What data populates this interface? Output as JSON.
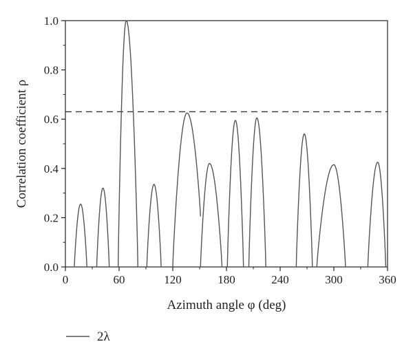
{
  "chart_data": {
    "type": "line",
    "title": "",
    "xlabel": "Azimuth angle φ (deg)",
    "ylabel": "Correlation coefficient ρ",
    "xlim": [
      0,
      360
    ],
    "ylim": [
      0,
      1.0
    ],
    "x_ticks": [
      0,
      60,
      120,
      180,
      240,
      300,
      360
    ],
    "x_tick_labels": [
      "0",
      "60",
      "120",
      "180",
      "240",
      "300",
      "360"
    ],
    "y_ticks": [
      0,
      0.2,
      0.4,
      0.6,
      0.8,
      1.0
    ],
    "y_tick_labels": [
      "0.0",
      "0.2",
      "0.4",
      "0.6",
      "0.8",
      "1.0"
    ],
    "grid": false,
    "legend_position": "bottom-left",
    "threshold": {
      "y": 0.63,
      "style": "dashed"
    },
    "series": [
      {
        "name": "2λ",
        "color": "#555555",
        "lobes": [
          {
            "start": 10,
            "peak_x": 17,
            "peak_y": 0.255,
            "end": 24
          },
          {
            "start": 35,
            "peak_x": 42,
            "peak_y": 0.32,
            "end": 49
          },
          {
            "start": 59,
            "peak_x": 68,
            "peak_y": 1.0,
            "end": 81
          },
          {
            "start": 91,
            "peak_x": 99,
            "peak_y": 0.335,
            "end": 107
          },
          {
            "start": 120,
            "peak_x": 136,
            "peak_y": 0.625,
            "end": 151,
            "join_y": 0.205
          },
          {
            "start": 151,
            "peak_x": 161,
            "peak_y": 0.42,
            "end": 175
          },
          {
            "start": 181,
            "peak_x": 190,
            "peak_y": 0.595,
            "end": 199
          },
          {
            "start": 205,
            "peak_x": 214,
            "peak_y": 0.605,
            "end": 224
          },
          {
            "start": 258,
            "peak_x": 267,
            "peak_y": 0.54,
            "end": 276
          },
          {
            "start": 281,
            "peak_x": 300,
            "peak_y": 0.415,
            "end": 313
          },
          {
            "start": 338,
            "peak_x": 349,
            "peak_y": 0.425,
            "end": 358
          }
        ]
      }
    ]
  }
}
